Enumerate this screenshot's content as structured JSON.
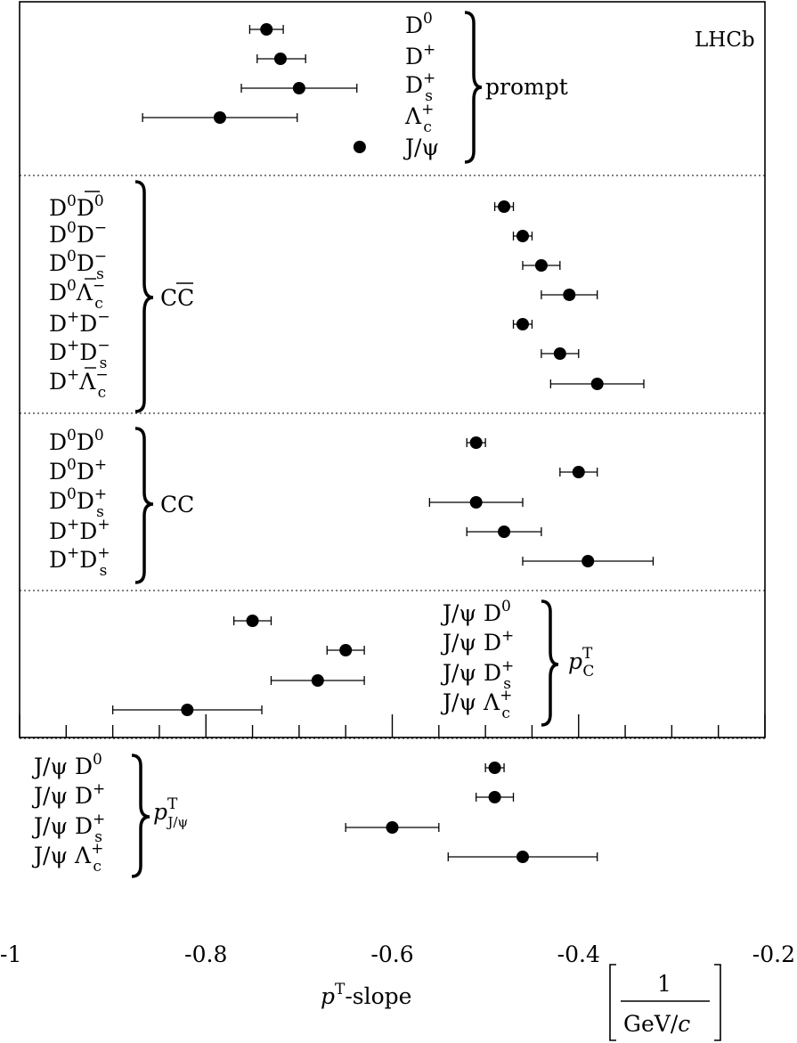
{
  "chart_data": {
    "type": "scatter",
    "title": "",
    "experiment": "LHCb",
    "xlabel": "p^T-slope",
    "xunit": "1 / (GeV/c)",
    "xlim": [
      -1.0,
      -0.2
    ],
    "xticks": [
      -1.0,
      -0.8,
      -0.6,
      -0.4,
      -0.2
    ],
    "xtick_labels": [
      "-1",
      "-0.8",
      "-0.6",
      "-0.4",
      "-0.2"
    ],
    "groups": [
      {
        "label": "prompt",
        "items": [
          {
            "label": "D0",
            "value": -0.735,
            "err_lo": 0.018,
            "err_hi": 0.018
          },
          {
            "label": "D+",
            "value": -0.72,
            "err_lo": 0.025,
            "err_hi": 0.027
          },
          {
            "label": "Ds+",
            "value": -0.7,
            "err_lo": 0.062,
            "err_hi": 0.062
          },
          {
            "label": "Λc+",
            "value": -0.785,
            "err_lo": 0.083,
            "err_hi": 0.083
          },
          {
            "label": "J/ψ",
            "value": -0.635,
            "err_lo": 0.0,
            "err_hi": 0.0
          }
        ]
      },
      {
        "label": "CC̄",
        "items": [
          {
            "label": "D0D̄0",
            "value": -0.48,
            "err_lo": 0.01,
            "err_hi": 0.01
          },
          {
            "label": "D0D−",
            "value": -0.46,
            "err_lo": 0.01,
            "err_hi": 0.01
          },
          {
            "label": "D0Ds−",
            "value": -0.44,
            "err_lo": 0.02,
            "err_hi": 0.02
          },
          {
            "label": "D0Λ̄c−",
            "value": -0.41,
            "err_lo": 0.03,
            "err_hi": 0.03
          },
          {
            "label": "D+D−",
            "value": -0.46,
            "err_lo": 0.01,
            "err_hi": 0.01
          },
          {
            "label": "D+Ds−",
            "value": -0.42,
            "err_lo": 0.02,
            "err_hi": 0.02
          },
          {
            "label": "D+Λ̄c−",
            "value": -0.38,
            "err_lo": 0.05,
            "err_hi": 0.05
          }
        ]
      },
      {
        "label": "CC",
        "items": [
          {
            "label": "D0D0",
            "value": -0.51,
            "err_lo": 0.01,
            "err_hi": 0.01
          },
          {
            "label": "D0D+",
            "value": -0.4,
            "err_lo": 0.02,
            "err_hi": 0.02
          },
          {
            "label": "D0Ds+",
            "value": -0.51,
            "err_lo": 0.05,
            "err_hi": 0.05
          },
          {
            "label": "D+D+",
            "value": -0.48,
            "err_lo": 0.04,
            "err_hi": 0.04
          },
          {
            "label": "D+Ds+",
            "value": -0.39,
            "err_lo": 0.07,
            "err_hi": 0.07
          }
        ]
      },
      {
        "label": "p^T_C",
        "items": [
          {
            "label": "J/ψ D0",
            "value": -0.75,
            "err_lo": 0.02,
            "err_hi": 0.02
          },
          {
            "label": "J/ψ D+",
            "value": -0.65,
            "err_lo": 0.02,
            "err_hi": 0.02
          },
          {
            "label": "J/ψ Ds+",
            "value": -0.68,
            "err_lo": 0.05,
            "err_hi": 0.05
          },
          {
            "label": "J/ψ Λc+",
            "value": -0.82,
            "err_lo": 0.08,
            "err_hi": 0.08
          }
        ]
      },
      {
        "label": "p^T_J/ψ",
        "items": [
          {
            "label": "J/ψ D0",
            "value": -0.49,
            "err_lo": 0.01,
            "err_hi": 0.01
          },
          {
            "label": "J/ψ D+",
            "value": -0.49,
            "err_lo": 0.02,
            "err_hi": 0.02
          },
          {
            "label": "J/ψ Ds+",
            "value": -0.6,
            "err_lo": 0.05,
            "err_hi": 0.05
          },
          {
            "label": "J/ψ Λc+",
            "value": -0.46,
            "err_lo": 0.08,
            "err_hi": 0.08
          }
        ]
      }
    ]
  }
}
